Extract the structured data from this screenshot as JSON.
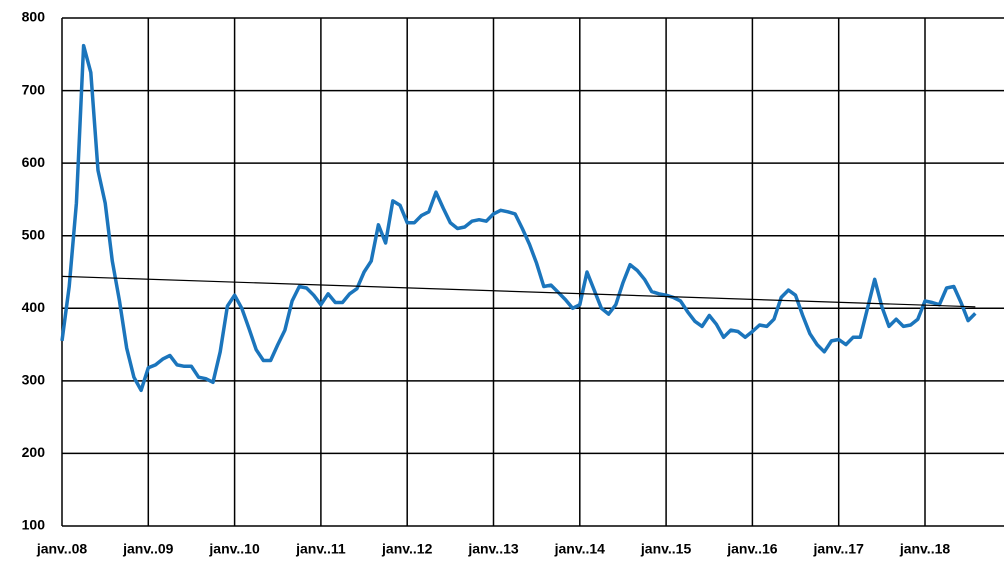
{
  "chart_data": {
    "type": "line",
    "categories": [
      "janv..08",
      null,
      null,
      null,
      null,
      null,
      null,
      null,
      null,
      null,
      null,
      null,
      "janv..09",
      null,
      null,
      null,
      null,
      null,
      null,
      null,
      null,
      null,
      null,
      null,
      "janv..10",
      null,
      null,
      null,
      null,
      null,
      null,
      null,
      null,
      null,
      null,
      null,
      "janv..11",
      null,
      null,
      null,
      null,
      null,
      null,
      null,
      null,
      null,
      null,
      null,
      "janv..12",
      null,
      null,
      null,
      null,
      null,
      null,
      null,
      null,
      null,
      null,
      null,
      "janv..13",
      null,
      null,
      null,
      null,
      null,
      null,
      null,
      null,
      null,
      null,
      null,
      "janv..14",
      null,
      null,
      null,
      null,
      null,
      null,
      null,
      null,
      null,
      null,
      null,
      "janv..15",
      null,
      null,
      null,
      null,
      null,
      null,
      null,
      null,
      null,
      null,
      null,
      "janv..16",
      null,
      null,
      null,
      null,
      null,
      null,
      null,
      null,
      null,
      null,
      null,
      "janv..17",
      null,
      null,
      null,
      null,
      null,
      null,
      null,
      null,
      null,
      null,
      null,
      "janv..18",
      null,
      null,
      null,
      null,
      null,
      null,
      null
    ],
    "series": [
      {
        "color": "#1b75bc",
        "values": [
          355,
          430,
          545,
          762,
          725,
          590,
          545,
          465,
          410,
          345,
          305,
          287,
          318,
          322,
          330,
          335,
          322,
          320,
          320,
          305,
          303,
          298,
          340,
          403,
          418,
          400,
          372,
          343,
          328,
          328,
          350,
          370,
          410,
          430,
          428,
          418,
          405,
          420,
          408,
          408,
          420,
          427,
          450,
          465,
          515,
          490,
          548,
          542,
          518,
          518,
          528,
          533,
          560,
          538,
          518,
          510,
          512,
          520,
          522,
          520,
          530,
          535,
          533,
          530,
          510,
          488,
          462,
          430,
          432,
          422,
          412,
          400,
          405,
          450,
          425,
          400,
          392,
          405,
          435,
          460,
          452,
          440,
          423,
          420,
          418,
          415,
          410,
          395,
          382,
          375,
          390,
          378,
          360,
          370,
          368,
          360,
          368,
          377,
          375,
          385,
          415,
          425,
          418,
          390,
          365,
          350,
          340,
          355,
          357,
          350,
          360,
          360,
          400,
          440,
          402,
          375,
          385,
          375,
          377,
          385,
          410,
          408,
          405,
          428,
          430,
          408,
          383,
          393
        ]
      }
    ],
    "trend": {
      "color": "#000000",
      "values": [
        444,
        402
      ]
    },
    "ylim": [
      100,
      800
    ],
    "yticks": [
      100,
      200,
      300,
      400,
      500,
      600,
      700,
      800
    ],
    "grid": true
  }
}
